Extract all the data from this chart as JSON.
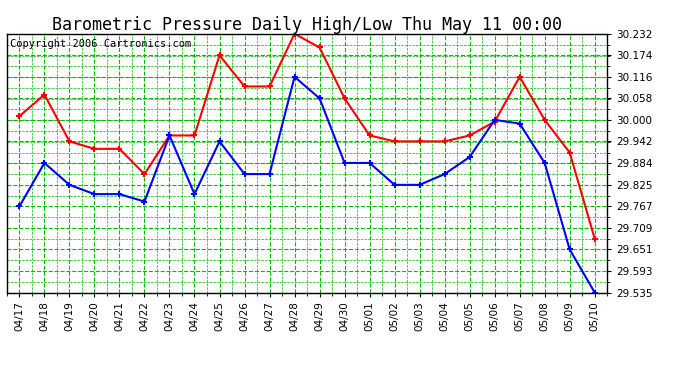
{
  "title": "Barometric Pressure Daily High/Low Thu May 11 00:00",
  "copyright": "Copyright 2006 Cartronics.com",
  "labels": [
    "04/17",
    "04/18",
    "04/19",
    "04/20",
    "04/21",
    "04/22",
    "04/23",
    "04/24",
    "04/25",
    "04/26",
    "04/27",
    "04/28",
    "04/29",
    "04/30",
    "05/01",
    "05/02",
    "05/03",
    "05/04",
    "05/05",
    "05/06",
    "05/07",
    "05/08",
    "05/09",
    "05/10"
  ],
  "high": [
    30.01,
    30.068,
    29.942,
    29.922,
    29.922,
    29.854,
    29.958,
    29.958,
    30.174,
    30.09,
    30.09,
    30.232,
    30.195,
    30.058,
    29.958,
    29.942,
    29.942,
    29.942,
    29.958,
    29.995,
    30.116,
    30.0,
    29.912,
    29.68
  ],
  "low": [
    29.767,
    29.884,
    29.825,
    29.8,
    29.8,
    29.78,
    29.958,
    29.8,
    29.942,
    29.854,
    29.854,
    30.116,
    30.058,
    29.884,
    29.884,
    29.825,
    29.825,
    29.854,
    29.9,
    30.0,
    29.99,
    29.884,
    29.651,
    29.535
  ],
  "ylim_min": 29.535,
  "ylim_max": 30.232,
  "yticks": [
    30.232,
    30.174,
    30.116,
    30.058,
    30.0,
    29.942,
    29.884,
    29.825,
    29.767,
    29.709,
    29.651,
    29.593,
    29.535
  ],
  "high_color": "#ff0000",
  "low_color": "#0000ff",
  "grid_color": "#00bb00",
  "bg_color": "#ffffff",
  "title_fontsize": 12,
  "copyright_fontsize": 7.5,
  "tick_fontsize": 7.5,
  "line_width": 1.5,
  "marker_size": 4
}
